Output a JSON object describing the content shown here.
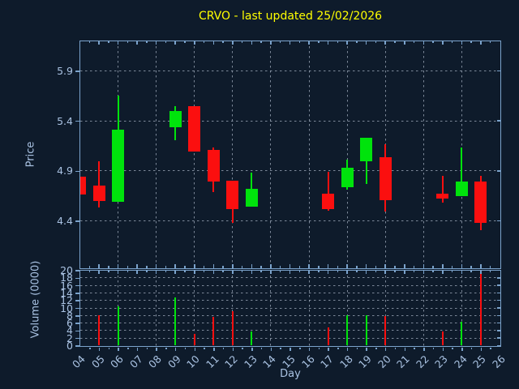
{
  "title": "CRVO - last updated 25/02/2026",
  "colors": {
    "background": "#0e1b2b",
    "axis": "#7ba3cc",
    "tick_label": "#a9c2e2",
    "title": "#ffff00",
    "grid": "#97a3b4",
    "up": "#00e30c",
    "down": "#fb0f0f"
  },
  "chart_data": {
    "type": "candlestick",
    "title": "CRVO - last updated 25/02/2026",
    "xlabel": "Day",
    "legend": null,
    "grid": "dashed",
    "x_axis": {
      "xlim": [
        4,
        26
      ],
      "tick_values": [
        4,
        5,
        6,
        7,
        8,
        9,
        10,
        11,
        12,
        13,
        14,
        15,
        16,
        17,
        18,
        19,
        20,
        21,
        22,
        23,
        24,
        25,
        26
      ],
      "tick_labels": [
        "04",
        "05",
        "06",
        "07",
        "08",
        "09",
        "10",
        "11",
        "12",
        "13",
        "14",
        "15",
        "16",
        "17",
        "18",
        "19",
        "20",
        "21",
        "22",
        "23",
        "24",
        "25",
        "26"
      ],
      "grid_days": [
        6,
        8,
        10,
        12,
        14,
        16,
        18,
        20,
        22,
        24
      ],
      "minor_tick_step": 0.5
    },
    "price_axis": {
      "label": "Price",
      "ylim": [
        3.93,
        6.2
      ],
      "tick_values": [
        4.4,
        4.9,
        5.4,
        5.9
      ],
      "tick_labels": [
        "4.4",
        "4.9",
        "5.4",
        "5.9"
      ]
    },
    "volume_axis": {
      "label": "Volume (0000)",
      "ylim": [
        0,
        20
      ],
      "tick_values": [
        0,
        2,
        4,
        6,
        8,
        10,
        12,
        14,
        16,
        18,
        20
      ],
      "tick_labels": [
        "0",
        "2",
        "4",
        "6",
        "8",
        "10",
        "12",
        "14",
        "16",
        "18",
        "20"
      ]
    },
    "ohlcv": [
      {
        "day": 4,
        "open": 4.84,
        "high": 4.84,
        "low": 4.66,
        "close": 4.66,
        "volume": 0
      },
      {
        "day": 5,
        "open": 4.75,
        "high": 5.0,
        "low": 4.53,
        "close": 4.6,
        "volume": 8.0
      },
      {
        "day": 6,
        "open": 4.59,
        "high": 5.65,
        "low": 4.59,
        "close": 5.31,
        "volume": 10.5
      },
      {
        "day": 9,
        "open": 5.34,
        "high": 5.55,
        "low": 5.21,
        "close": 5.5,
        "volume": 12.8
      },
      {
        "day": 10,
        "open": 5.55,
        "high": 5.55,
        "low": 5.09,
        "close": 5.09,
        "volume": 3.2
      },
      {
        "day": 11,
        "open": 5.11,
        "high": 5.13,
        "low": 4.69,
        "close": 4.79,
        "volume": 7.7
      },
      {
        "day": 12,
        "open": 4.8,
        "high": 4.8,
        "low": 4.38,
        "close": 4.52,
        "volume": 9.1
      },
      {
        "day": 13,
        "open": 4.54,
        "high": 4.88,
        "low": 4.54,
        "close": 4.72,
        "volume": 3.7
      },
      {
        "day": 17,
        "open": 4.67,
        "high": 4.89,
        "low": 4.5,
        "close": 4.52,
        "volume": 4.9
      },
      {
        "day": 18,
        "open": 4.74,
        "high": 5.01,
        "low": 4.71,
        "close": 4.93,
        "volume": 8.1
      },
      {
        "day": 19,
        "open": 5.0,
        "high": 5.23,
        "low": 4.77,
        "close": 5.23,
        "volume": 8.0
      },
      {
        "day": 20,
        "open": 5.04,
        "high": 5.17,
        "low": 4.49,
        "close": 4.61,
        "volume": 7.8
      },
      {
        "day": 23,
        "open": 4.67,
        "high": 4.85,
        "low": 4.58,
        "close": 4.62,
        "volume": 3.8
      },
      {
        "day": 24,
        "open": 4.65,
        "high": 5.13,
        "low": 4.65,
        "close": 4.79,
        "volume": 6.3
      },
      {
        "day": 25,
        "open": 4.79,
        "high": 4.85,
        "low": 4.31,
        "close": 4.38,
        "volume": 19.0
      }
    ]
  }
}
